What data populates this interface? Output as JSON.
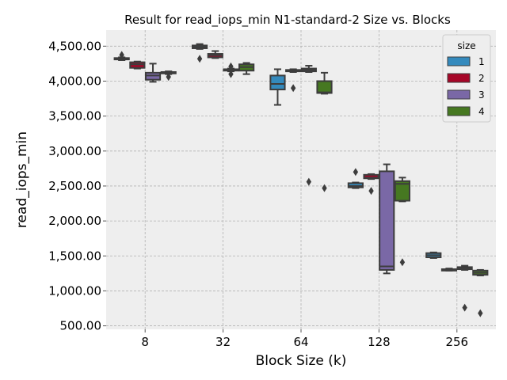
{
  "chart_data": {
    "type": "box",
    "title": "Result for read_iops_min N1-standard-2 Size vs. Blocks",
    "xlabel": "Block Size (k)",
    "ylabel": "read_iops_min",
    "categories": [
      "8",
      "32",
      "64",
      "128",
      "256"
    ],
    "ylim": [
      450,
      4730
    ],
    "yticks": [
      500,
      1000,
      1500,
      2000,
      2500,
      3000,
      3500,
      4000,
      4500
    ],
    "ytick_labels": [
      "500.00",
      "1,000.00",
      "1,500.00",
      "2,000.00",
      "2,500.00",
      "3,000.00",
      "3,500.00",
      "4,000.00",
      "4,500.00"
    ],
    "grid": true,
    "legend": {
      "title": "size",
      "placement": "top-right"
    },
    "series": [
      {
        "name": "1",
        "color": "#348abd",
        "boxes": [
          {
            "category": "8",
            "min": 4300,
            "q1": 4310,
            "median": 4320,
            "q3": 4330,
            "max": 4340,
            "outliers": [
              4375
            ]
          },
          {
            "category": "32",
            "min": 4460,
            "q1": 4470,
            "median": 4490,
            "q3": 4510,
            "max": 4530,
            "outliers": [
              4320
            ]
          },
          {
            "category": "64",
            "min": 3660,
            "q1": 3880,
            "median": 3960,
            "q3": 4080,
            "max": 4170,
            "outliers": []
          },
          {
            "category": "128",
            "min": 2470,
            "q1": 2480,
            "median": 2500,
            "q3": 2540,
            "max": 2550,
            "outliers": [
              2700
            ]
          },
          {
            "category": "256",
            "min": 1470,
            "q1": 1480,
            "median": 1510,
            "q3": 1540,
            "max": 1550,
            "outliers": []
          }
        ]
      },
      {
        "name": "2",
        "color": "#a60628",
        "boxes": [
          {
            "category": "8",
            "min": 4180,
            "q1": 4190,
            "median": 4240,
            "q3": 4270,
            "max": 4280,
            "outliers": []
          },
          {
            "category": "32",
            "min": 4330,
            "q1": 4340,
            "median": 4370,
            "q3": 4390,
            "max": 4430,
            "outliers": []
          },
          {
            "category": "64",
            "min": 4130,
            "q1": 4140,
            "median": 4150,
            "q3": 4160,
            "max": 4170,
            "outliers": [
              3900
            ]
          },
          {
            "category": "128",
            "min": 2600,
            "q1": 2610,
            "median": 2620,
            "q3": 2660,
            "max": 2670,
            "outliers": [
              2430
            ]
          },
          {
            "category": "256",
            "min": 1290,
            "q1": 1290,
            "median": 1300,
            "q3": 1310,
            "max": 1320,
            "outliers": []
          }
        ]
      },
      {
        "name": "3",
        "color": "#7a68a6",
        "boxes": [
          {
            "category": "8",
            "min": 3990,
            "q1": 4020,
            "median": 4080,
            "q3": 4120,
            "max": 4250,
            "outliers": []
          },
          {
            "category": "32",
            "min": 4140,
            "q1": 4150,
            "median": 4160,
            "q3": 4170,
            "max": 4180,
            "outliers": [
              4100,
              4210
            ]
          },
          {
            "category": "64",
            "min": 4130,
            "q1": 4140,
            "median": 4160,
            "q3": 4180,
            "max": 4220,
            "outliers": [
              2560
            ]
          },
          {
            "category": "128",
            "min": 1250,
            "q1": 1300,
            "median": 1350,
            "q3": 2710,
            "max": 2810,
            "outliers": []
          },
          {
            "category": "256",
            "min": 1300,
            "q1": 1310,
            "median": 1330,
            "q3": 1340,
            "max": 1360,
            "outliers": [
              760
            ]
          }
        ]
      },
      {
        "name": "4",
        "color": "#467821",
        "boxes": [
          {
            "category": "8",
            "min": 4100,
            "q1": 4110,
            "median": 4120,
            "q3": 4130,
            "max": 4140,
            "outliers": [
              4060
            ]
          },
          {
            "category": "32",
            "min": 4100,
            "q1": 4150,
            "median": 4200,
            "q3": 4240,
            "max": 4260,
            "outliers": []
          },
          {
            "category": "64",
            "min": 3820,
            "q1": 3830,
            "median": 3840,
            "q3": 4000,
            "max": 4120,
            "outliers": [
              2470
            ]
          },
          {
            "category": "128",
            "min": 2280,
            "q1": 2290,
            "median": 2530,
            "q3": 2570,
            "max": 2620,
            "outliers": [
              1410
            ]
          },
          {
            "category": "256",
            "min": 1220,
            "q1": 1230,
            "median": 1260,
            "q3": 1290,
            "max": 1300,
            "outliers": [
              680
            ]
          }
        ]
      }
    ]
  }
}
